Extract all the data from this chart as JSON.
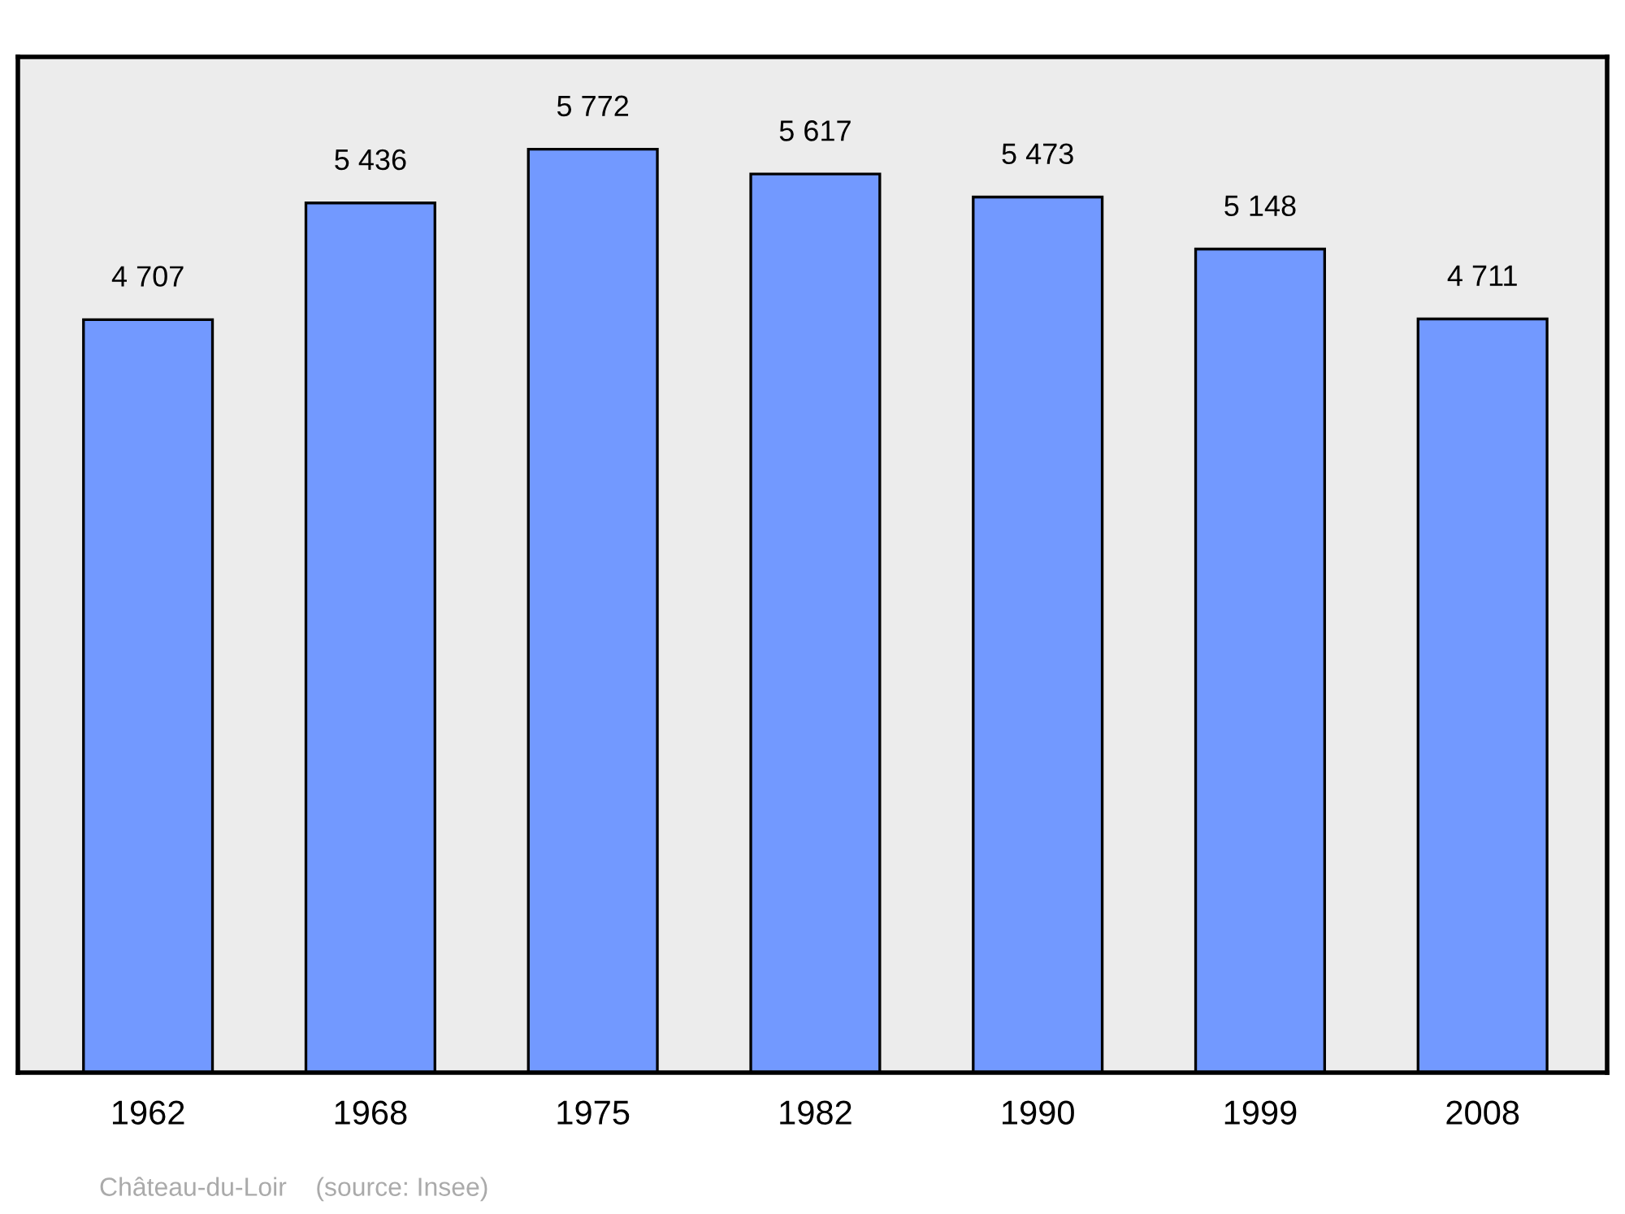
{
  "chart_data": {
    "type": "bar",
    "categories": [
      "1962",
      "1968",
      "1975",
      "1982",
      "1990",
      "1999",
      "2008"
    ],
    "values": [
      4707,
      5436,
      5772,
      5617,
      5473,
      5148,
      4711
    ],
    "value_labels": [
      "4 707",
      "5 436",
      "5 772",
      "5 617",
      "5 473",
      "5 148",
      "4 711"
    ],
    "color": "#7299ff",
    "grid": false,
    "legend": false,
    "tick_labels": "x",
    "annotations": [
      "Château-du-Loir    (source: Insee)"
    ]
  }
}
